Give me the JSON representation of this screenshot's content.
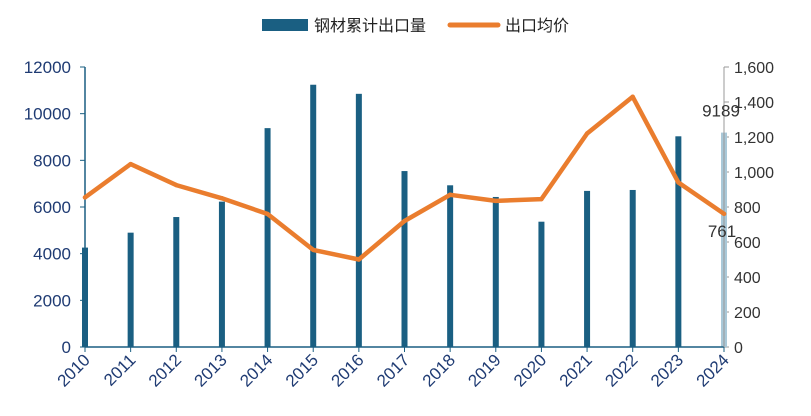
{
  "chart_data": {
    "type": "bar+line",
    "categories": [
      "2010",
      "2011",
      "2012",
      "2013",
      "2014",
      "2015",
      "2016",
      "2017",
      "2018",
      "2019",
      "2020",
      "2021",
      "2022",
      "2023",
      "2024"
    ],
    "series": [
      {
        "name": "钢材累计出口量",
        "type": "bar",
        "axis": "left",
        "color": "#1a5f82",
        "highlight_color": "#a9c8d8",
        "highlight_index": 14,
        "values": [
          4260,
          4900,
          5570,
          6230,
          9380,
          11240,
          10850,
          7540,
          6930,
          6430,
          5370,
          6690,
          6730,
          9030,
          9189
        ]
      },
      {
        "name": "出口均价",
        "type": "line",
        "axis": "right",
        "color": "#ea7d2e",
        "values": [
          855,
          1045,
          925,
          850,
          760,
          555,
          500,
          720,
          870,
          835,
          845,
          1220,
          1430,
          940,
          761
        ]
      }
    ],
    "y_left": {
      "min": 0,
      "max": 12000,
      "ticks": [
        "0",
        "2000",
        "4000",
        "6000",
        "8000",
        "10000",
        "12000"
      ]
    },
    "y_right": {
      "min": 0,
      "max": 1600,
      "ticks": [
        "0",
        "200",
        "400",
        "600",
        "800",
        "1,000",
        "1,200",
        "1,400",
        "1,600"
      ]
    },
    "annotations": [
      {
        "text": "9189",
        "series": 0,
        "index": 14
      },
      {
        "text": "761",
        "series": 1,
        "index": 14
      }
    ],
    "legend": {
      "placement": "top-center"
    },
    "grid": false
  }
}
